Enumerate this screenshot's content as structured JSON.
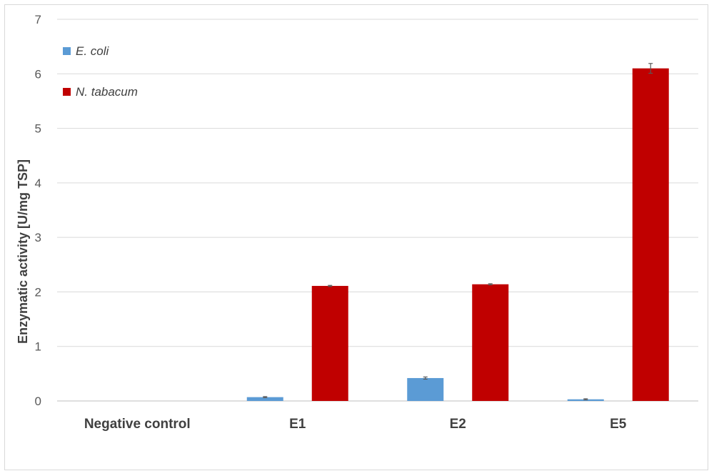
{
  "chart_data": {
    "type": "bar",
    "categories": [
      "Negative control",
      "E1",
      "E2",
      "E5"
    ],
    "series": [
      {
        "name": "E. coli",
        "color": "#5b9bd5",
        "values": [
          0,
          0.07,
          0.42,
          0.03
        ],
        "errors": [
          0,
          0.01,
          0.02,
          0.01
        ]
      },
      {
        "name": "N. tabacum",
        "color": "#c00000",
        "values": [
          0,
          2.11,
          2.14,
          6.1
        ],
        "errors": [
          0,
          0.01,
          0.01,
          0.09
        ]
      }
    ],
    "title": "",
    "xlabel": "",
    "ylabel": "Enzymatic activity  [U/mg TSP]",
    "ylim": [
      0,
      7
    ],
    "yticks": [
      0,
      1,
      2,
      3,
      4,
      5,
      6,
      7
    ],
    "grid": true,
    "legend_position": "top-left"
  }
}
